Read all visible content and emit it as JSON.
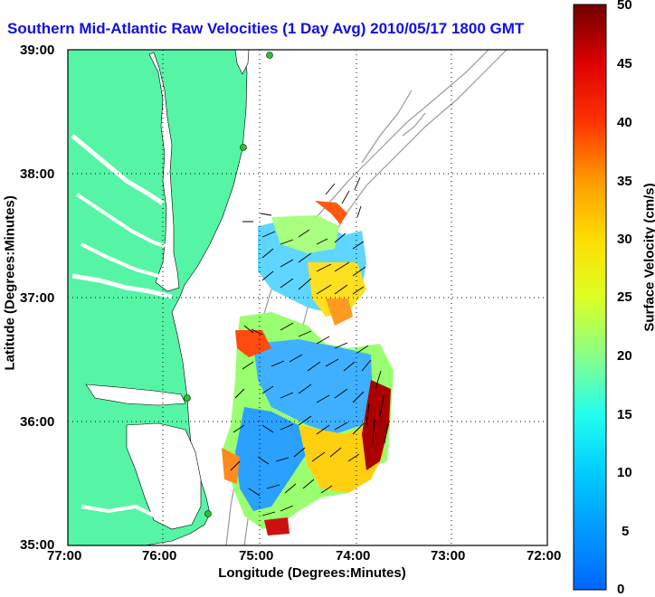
{
  "title": "Southern Mid-Atlantic Raw Velocities (1 Day Avg) 2010/05/17 1800 GMT",
  "axes": {
    "xlabel": "Longitude (Degrees:Minutes)",
    "ylabel": "Latitude (Degrees:Minutes)",
    "xticks": [
      "77:00",
      "76:00",
      "75:00",
      "74:00",
      "73:00",
      "72:00"
    ],
    "yticks": [
      "39:00",
      "38:00",
      "37:00",
      "36:00",
      "35:00"
    ]
  },
  "colorbar": {
    "label": "Surface Velocity (cm/s)",
    "ticks": [
      "50",
      "45",
      "40",
      "35",
      "30",
      "25",
      "20",
      "15",
      "10",
      "5",
      "0"
    ],
    "min": 0,
    "max": 50
  },
  "colors": {
    "land": "#55f5a5",
    "water": "#ffffff",
    "title": "#1010e6",
    "bathymetry": "#9a9a9a",
    "station": "#22cc22"
  }
}
